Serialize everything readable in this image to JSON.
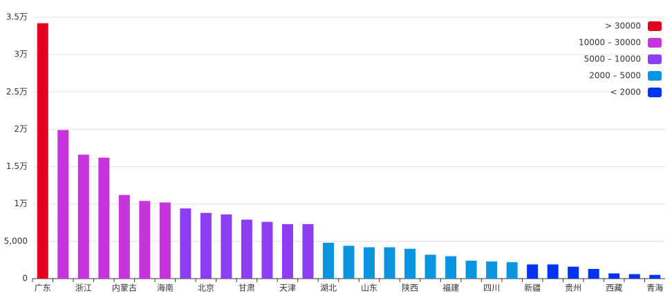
{
  "chart_data": {
    "type": "bar",
    "categories": [
      "广东",
      null,
      "浙江",
      null,
      "内蒙古",
      null,
      "海南",
      null,
      "北京",
      null,
      "甘肃",
      null,
      "天津",
      null,
      "湖北",
      null,
      "山东",
      null,
      "陕西",
      null,
      "福建",
      null,
      "四川",
      null,
      "新疆",
      null,
      "贵州",
      null,
      "西藏",
      null,
      "青海"
    ],
    "values": [
      34200,
      19900,
      16600,
      16200,
      11200,
      10400,
      10200,
      9400,
      8800,
      8600,
      7900,
      7600,
      7300,
      7300,
      4800,
      4400,
      4200,
      4200,
      4000,
      3200,
      3000,
      2400,
      2300,
      2200,
      1900,
      1900,
      1600,
      1300,
      700,
      600,
      500
    ],
    "ylim": [
      0,
      35000
    ],
    "yticks": [
      0,
      {
        "value": 5000,
        "label": "5,000"
      },
      {
        "value": 10000,
        "label": "1万"
      },
      {
        "value": 15000,
        "label": "1.5万"
      },
      {
        "value": 20000,
        "label": "2万"
      },
      {
        "value": 25000,
        "label": "2.5万"
      },
      {
        "value": 30000,
        "label": "3万"
      },
      {
        "value": 35000,
        "label": "3.5万"
      }
    ],
    "grid": true,
    "pieces": [
      {
        "label": "> 30000",
        "color": "#e3001e",
        "min": 30000
      },
      {
        "label": "10000 – 30000",
        "color": "#c634dc",
        "min": 10000,
        "max": 30000
      },
      {
        "label": "5000 – 10000",
        "color": "#8e3ef2",
        "min": 5000,
        "max": 10000
      },
      {
        "label": "2000 – 5000",
        "color": "#0b95e0",
        "min": 2000,
        "max": 5000
      },
      {
        "label": "< 2000",
        "color": "#0531f1",
        "max": 2000
      }
    ]
  }
}
